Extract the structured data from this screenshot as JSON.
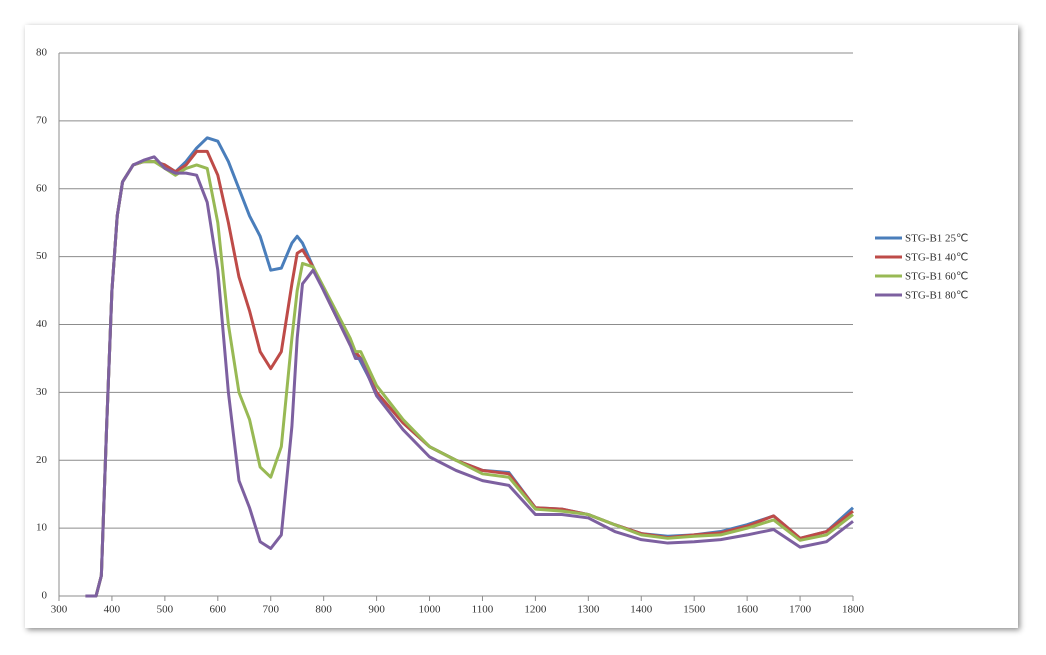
{
  "chart_data": {
    "type": "line",
    "x": [
      350,
      370,
      380,
      390,
      400,
      410,
      420,
      440,
      460,
      480,
      500,
      520,
      540,
      560,
      580,
      600,
      620,
      640,
      660,
      680,
      700,
      720,
      740,
      750,
      760,
      780,
      800,
      850,
      860,
      870,
      900,
      950,
      1000,
      1050,
      1100,
      1150,
      1200,
      1250,
      1300,
      1350,
      1400,
      1450,
      1500,
      1550,
      1600,
      1650,
      1700,
      1750,
      1800
    ],
    "series": [
      {
        "name": "STG-B1 25℃",
        "color": "#4a7ebb",
        "values": [
          0,
          0,
          3,
          25,
          45,
          56,
          61,
          63.5,
          64,
          64,
          63.5,
          62.5,
          64,
          66,
          67.5,
          67,
          64,
          60,
          56,
          53,
          48,
          48.3,
          52,
          53,
          52,
          48.5,
          45,
          37,
          36,
          34.5,
          30,
          25.5,
          22,
          20,
          18.5,
          18.2,
          13,
          12.8,
          12,
          10.5,
          9.2,
          8.8,
          9,
          9.5,
          10.5,
          11.8,
          8.5,
          9.5,
          13
        ]
      },
      {
        "name": "STG-B1 40℃",
        "color": "#be4b48",
        "values": [
          0,
          0,
          3,
          25,
          45,
          56,
          61,
          63.5,
          64,
          64,
          63.5,
          62.5,
          63.5,
          65.5,
          65.5,
          62,
          55,
          47,
          42,
          36,
          33.5,
          36,
          46,
          50.5,
          51,
          48.5,
          45,
          37,
          36,
          35,
          30,
          25.5,
          22,
          20,
          18.5,
          18,
          13,
          12.8,
          12,
          10.5,
          9.2,
          8.6,
          9,
          9.3,
          10.3,
          11.8,
          8.5,
          9.5,
          12.5
        ]
      },
      {
        "name": "STG-B1 60℃",
        "color": "#98b954",
        "values": [
          0,
          0,
          3,
          25,
          45,
          56,
          61,
          63.5,
          64,
          64,
          63,
          62,
          63,
          63.5,
          63,
          55,
          40,
          30,
          26,
          19,
          17.5,
          22,
          38,
          45,
          49,
          48.5,
          45.5,
          38,
          36,
          36,
          31,
          26,
          22,
          20,
          18,
          17.5,
          12.8,
          12.5,
          12,
          10.5,
          9,
          8.5,
          8.8,
          9,
          10,
          11.2,
          8.2,
          9,
          12
        ]
      },
      {
        "name": "STG-B1 80℃",
        "color": "#7d60a0",
        "values": [
          0,
          0,
          3,
          25,
          45,
          56,
          61,
          63.5,
          64.2,
          64.7,
          63,
          62.3,
          62.3,
          62,
          58,
          48,
          30,
          17,
          13,
          8,
          7,
          9,
          25,
          38,
          46,
          48,
          45,
          37,
          35,
          35,
          29.5,
          24.5,
          20.5,
          18.5,
          17,
          16.3,
          12,
          12,
          11.5,
          9.5,
          8.3,
          7.8,
          8,
          8.3,
          9,
          9.8,
          7.2,
          8,
          11
        ]
      }
    ],
    "xlim": [
      300,
      1800
    ],
    "xticks": [
      300,
      400,
      500,
      600,
      700,
      800,
      900,
      1000,
      1100,
      1200,
      1300,
      1400,
      1500,
      1600,
      1700,
      1800
    ],
    "ylim": [
      0,
      80
    ],
    "yticks": [
      0,
      10,
      20,
      30,
      40,
      50,
      60,
      70,
      80
    ],
    "grid": true,
    "legend": "right"
  }
}
